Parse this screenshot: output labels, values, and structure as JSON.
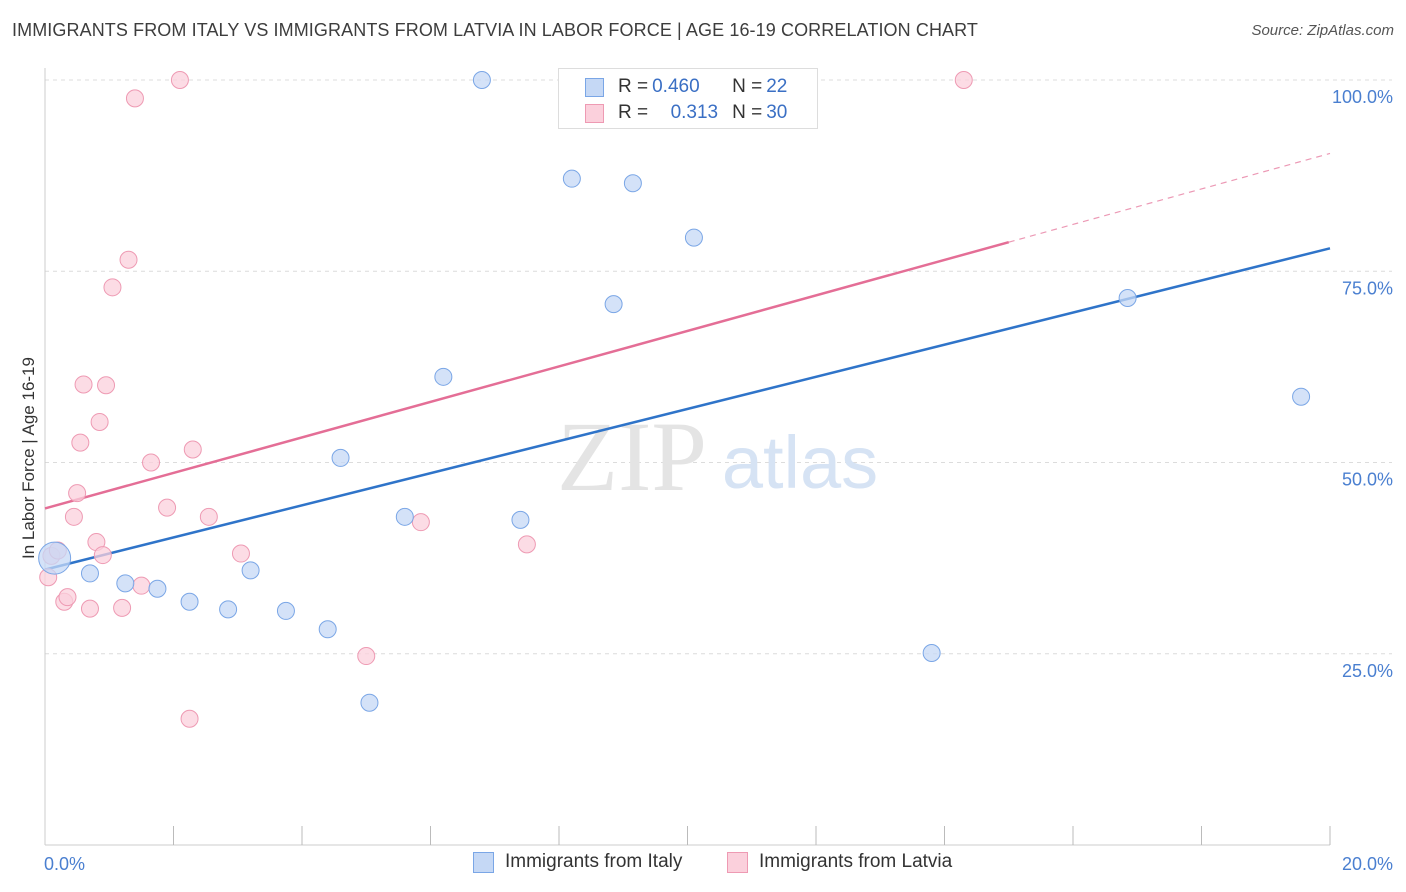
{
  "title": "IMMIGRANTS FROM ITALY VS IMMIGRANTS FROM LATVIA IN LABOR FORCE | AGE 16-19 CORRELATION CHART",
  "source": "Source: ZipAtlas.com",
  "watermark": {
    "zip": "ZIP",
    "atlas": "atlas"
  },
  "colors": {
    "italy_fill": "#c5d8f5",
    "italy_stroke": "#7aa6e6",
    "italy_line": "#2f74c9",
    "latvia_fill": "#fbd0dc",
    "latvia_stroke": "#ee9ab3",
    "latvia_line": "#e46e96",
    "tick_text": "#4a7fd0",
    "grid": "#dcdcdc"
  },
  "legend": {
    "rows": [
      {
        "series": "italy",
        "r_label": "R = ",
        "r_value": "0.460",
        "n_label": "N = ",
        "n_value": "22"
      },
      {
        "series": "latvia",
        "r_label": "R = ",
        "r_value": "0.313",
        "n_label": "N = ",
        "n_value": "30"
      }
    ]
  },
  "chart_data": {
    "type": "scatter",
    "title": "IMMIGRANTS FROM ITALY VS IMMIGRANTS FROM LATVIA IN LABOR FORCE | AGE 16-19 CORRELATION CHART",
    "xlabel": "",
    "ylabel": "In Labor Force | Age 16-19",
    "xlim": [
      0,
      20
    ],
    "ylim": [
      0,
      105
    ],
    "x_tick_labels": {
      "0": "0.0%",
      "20": "20.0%"
    },
    "x_minor_ticks": [
      2,
      4,
      6,
      8,
      10,
      12,
      14,
      16,
      18,
      20
    ],
    "y_ticks": [
      25,
      50,
      75,
      100
    ],
    "y_tick_labels": [
      "25.0%",
      "50.0%",
      "75.0%",
      "100.0%"
    ],
    "grid": true,
    "series": [
      {
        "name": "Immigrants from Italy",
        "key": "italy",
        "r": 0.46,
        "n": 22,
        "points": [
          {
            "x": 0.15,
            "y": 37.5,
            "size": "large"
          },
          {
            "x": 0.7,
            "y": 35.5
          },
          {
            "x": 1.25,
            "y": 34.2
          },
          {
            "x": 1.75,
            "y": 33.5
          },
          {
            "x": 2.25,
            "y": 31.8
          },
          {
            "x": 2.85,
            "y": 30.8
          },
          {
            "x": 3.2,
            "y": 35.9
          },
          {
            "x": 3.75,
            "y": 30.6
          },
          {
            "x": 4.4,
            "y": 28.2
          },
          {
            "x": 4.6,
            "y": 50.6
          },
          {
            "x": 5.05,
            "y": 18.6
          },
          {
            "x": 5.6,
            "y": 42.9
          },
          {
            "x": 6.2,
            "y": 61.2
          },
          {
            "x": 6.8,
            "y": 100.0
          },
          {
            "x": 7.4,
            "y": 42.5
          },
          {
            "x": 8.2,
            "y": 87.1
          },
          {
            "x": 8.85,
            "y": 70.7
          },
          {
            "x": 9.15,
            "y": 86.5
          },
          {
            "x": 10.1,
            "y": 79.4
          },
          {
            "x": 13.8,
            "y": 25.1
          },
          {
            "x": 16.85,
            "y": 71.5
          },
          {
            "x": 19.55,
            "y": 58.6
          }
        ],
        "trend": {
          "x0": 0,
          "y0": 36.0,
          "x1": 20,
          "y1": 78.0
        }
      },
      {
        "name": "Immigrants from Latvia",
        "key": "latvia",
        "r": 0.313,
        "n": 30,
        "points": [
          {
            "x": 0.05,
            "y": 35.0
          },
          {
            "x": 0.1,
            "y": 37.8
          },
          {
            "x": 0.2,
            "y": 38.5
          },
          {
            "x": 0.3,
            "y": 31.8
          },
          {
            "x": 0.35,
            "y": 32.4
          },
          {
            "x": 0.45,
            "y": 42.9
          },
          {
            "x": 0.5,
            "y": 46.0
          },
          {
            "x": 0.55,
            "y": 52.6
          },
          {
            "x": 0.6,
            "y": 60.2
          },
          {
            "x": 0.7,
            "y": 30.9
          },
          {
            "x": 0.8,
            "y": 39.6
          },
          {
            "x": 0.85,
            "y": 55.3
          },
          {
            "x": 0.9,
            "y": 37.9
          },
          {
            "x": 0.95,
            "y": 60.1
          },
          {
            "x": 1.05,
            "y": 72.9
          },
          {
            "x": 1.2,
            "y": 31.0
          },
          {
            "x": 1.3,
            "y": 76.5
          },
          {
            "x": 1.4,
            "y": 97.6
          },
          {
            "x": 1.5,
            "y": 33.9
          },
          {
            "x": 1.65,
            "y": 50.0
          },
          {
            "x": 1.9,
            "y": 44.1
          },
          {
            "x": 2.1,
            "y": 100.0
          },
          {
            "x": 2.25,
            "y": 16.5
          },
          {
            "x": 2.3,
            "y": 51.7
          },
          {
            "x": 2.55,
            "y": 42.9
          },
          {
            "x": 3.05,
            "y": 38.1
          },
          {
            "x": 5.0,
            "y": 24.7
          },
          {
            "x": 5.85,
            "y": 42.2
          },
          {
            "x": 7.5,
            "y": 39.3
          },
          {
            "x": 14.3,
            "y": 100.0
          }
        ],
        "trend": {
          "x0": 0,
          "y0": 44.0,
          "x1": 15,
          "y1": 78.8
        },
        "trend_extension": {
          "x0": 15,
          "y0": 78.8,
          "x1": 20,
          "y1": 90.4
        }
      }
    ]
  },
  "bottom_legend": {
    "items": [
      {
        "series": "italy",
        "label": "Immigrants from Italy"
      },
      {
        "series": "latvia",
        "label": "Immigrants from Latvia"
      }
    ]
  }
}
